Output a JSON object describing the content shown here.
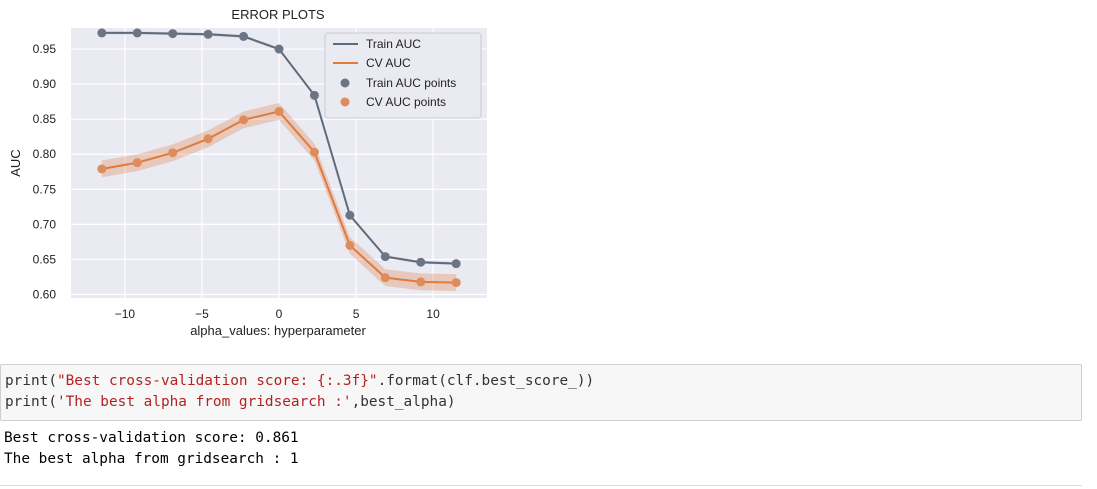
{
  "chart_data": {
    "type": "line",
    "title": "ERROR PLOTS",
    "xlabel": "alpha_values: hyperparameter",
    "ylabel": "AUC",
    "xlim": [
      -13.5,
      13.5
    ],
    "ylim": [
      0.595,
      0.98
    ],
    "xticks": [
      -10,
      -5,
      0,
      5,
      10
    ],
    "xtick_labels": [
      "−10",
      "−5",
      "0",
      "5",
      "10"
    ],
    "yticks": [
      0.6,
      0.65,
      0.7,
      0.75,
      0.8,
      0.85,
      0.9,
      0.95
    ],
    "ytick_labels": [
      "0.60",
      "0.65",
      "0.70",
      "0.75",
      "0.80",
      "0.85",
      "0.90",
      "0.95"
    ],
    "grid": true,
    "legend_position": "top-right",
    "x": [
      -11.5,
      -9.2,
      -6.9,
      -4.6,
      -2.3,
      0,
      2.3,
      4.6,
      6.9,
      9.2,
      11.5
    ],
    "series": [
      {
        "name": "Train AUC",
        "points_name": "Train AUC points",
        "color": "#5f6b7a",
        "point_color": "#6b7585",
        "values": [
          0.973,
          0.973,
          0.972,
          0.971,
          0.968,
          0.95,
          0.884,
          0.713,
          0.654,
          0.646,
          0.644
        ],
        "band": 0.002
      },
      {
        "name": "CV AUC",
        "points_name": "CV AUC points",
        "color": "#e07b3e",
        "point_color": "#de8c5c",
        "values": [
          0.779,
          0.788,
          0.802,
          0.822,
          0.849,
          0.861,
          0.803,
          0.67,
          0.624,
          0.618,
          0.617
        ],
        "band": 0.012
      }
    ]
  },
  "code_cell": {
    "line1": {
      "a": "print(",
      "s1": "\"Best cross-validation score: {:.3f}\"",
      "b": ".format(clf.best_score_))"
    },
    "line2": {
      "a": "print(",
      "s1": "'The best alpha from gridsearch :'",
      "b": ",best_alpha)"
    }
  },
  "output": {
    "line1": "Best cross-validation score: 0.861",
    "line2": "The best alpha from gridsearch : 1"
  },
  "colors": {
    "plot_bg": "#eaeaf2",
    "grid": "#ffffff",
    "string": "#b22222",
    "code_bg": "#f7f7f7"
  }
}
